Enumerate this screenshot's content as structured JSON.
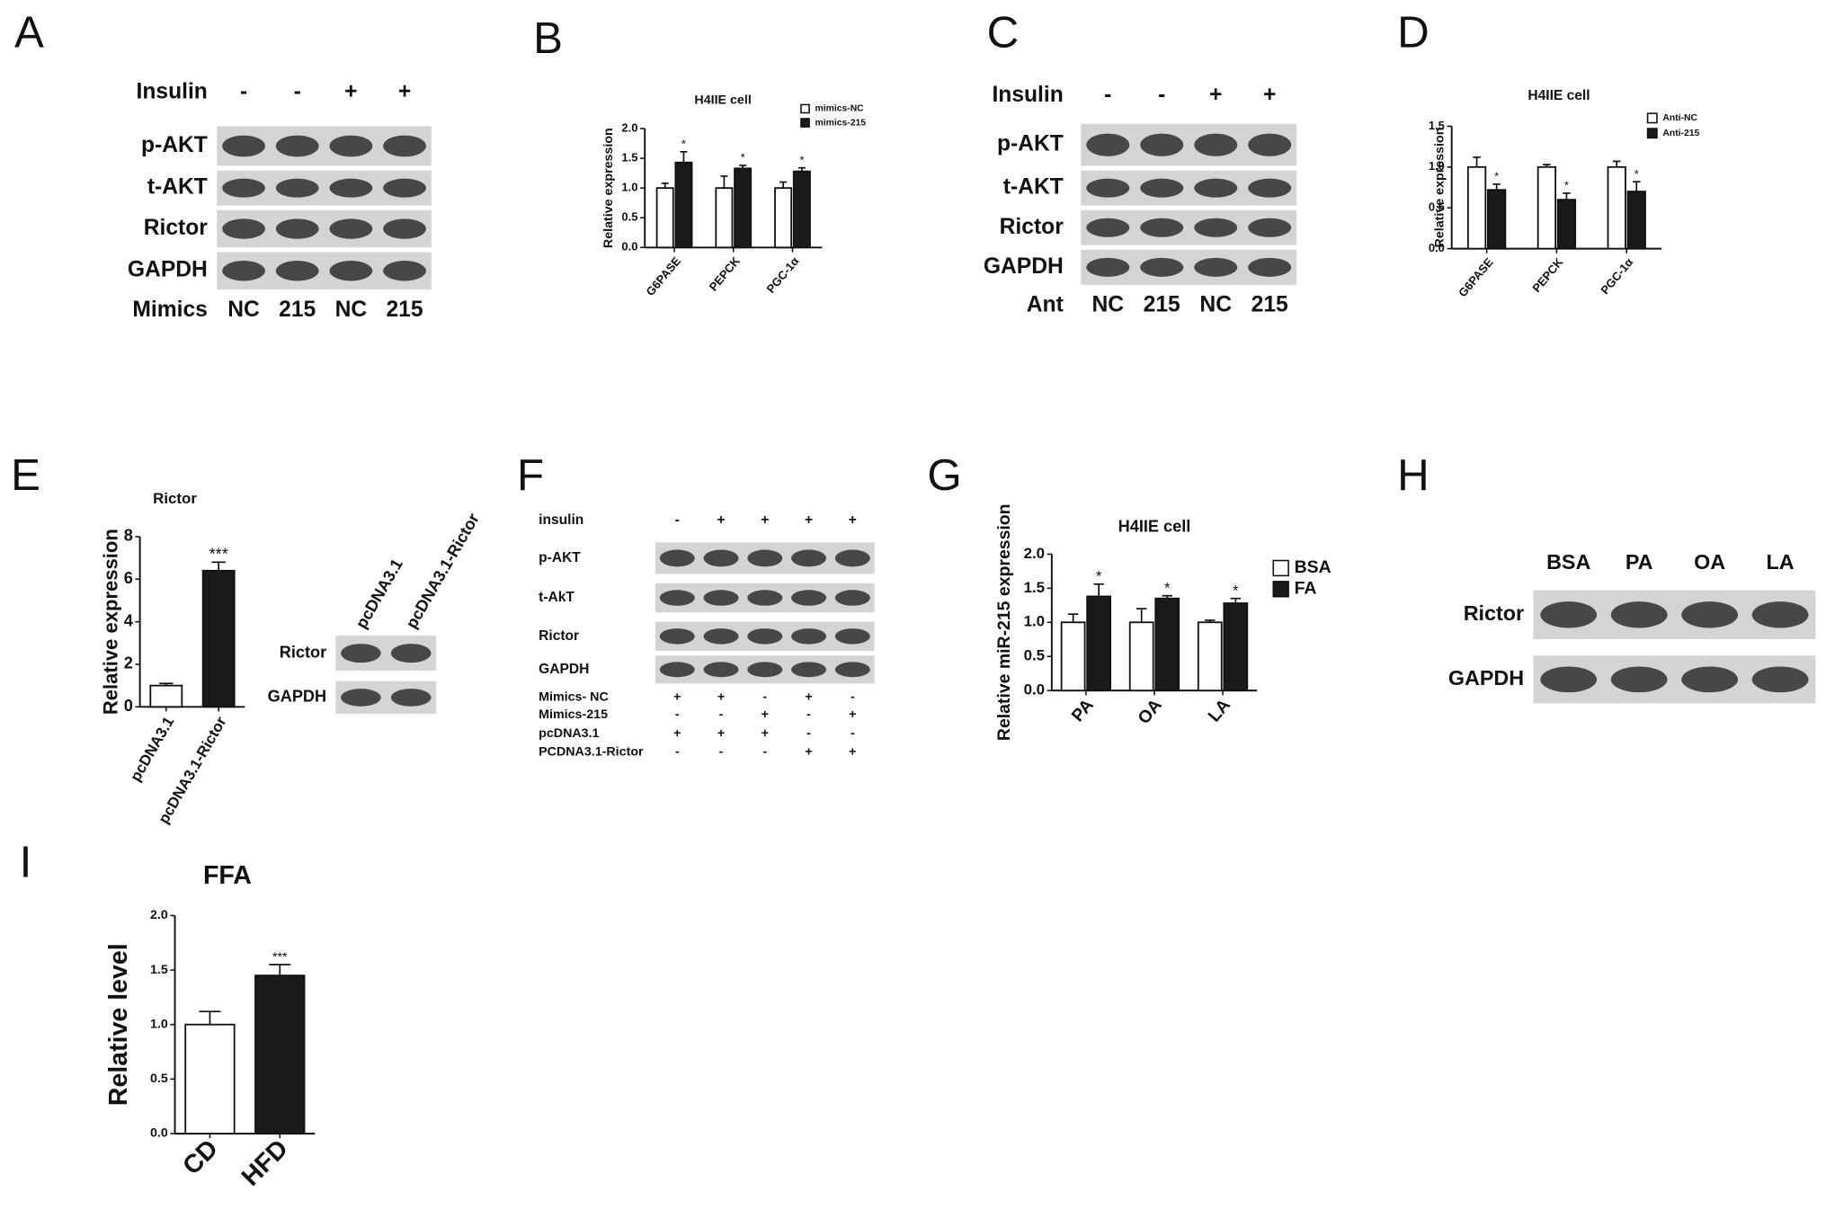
{
  "chart_data": [
    {
      "type": "bar",
      "panel": "B",
      "title": "H4IIE cell",
      "y_label": "Relative expression",
      "categories": [
        "G6PASE",
        "PEPCK",
        "PGC-1α"
      ],
      "series": [
        {
          "name": "mimics-NC",
          "color": "#ffffff",
          "values": [
            1.0,
            1.0,
            1.0
          ],
          "errors": [
            0.08,
            0.2,
            0.1
          ]
        },
        {
          "name": "mimics-215",
          "color": "#1a1a1a",
          "values": [
            1.43,
            1.33,
            1.28
          ],
          "errors": [
            0.18,
            0.05,
            0.06
          ],
          "significance": [
            "*",
            "*",
            "*"
          ]
        }
      ],
      "ylim": [
        0,
        2
      ],
      "yticks": [
        {
          "value": 0,
          "label": "0.0"
        },
        {
          "value": 0.5,
          "label": "0.5"
        },
        {
          "value": 1,
          "label": "1.0"
        },
        {
          "value": 1.5,
          "label": "1.5"
        },
        {
          "value": 2,
          "label": "2.0"
        }
      ]
    },
    {
      "type": "bar",
      "panel": "D",
      "title": "H4IIE cell",
      "y_label": "Relative expression",
      "categories": [
        "G6PASE",
        "PEPCK",
        "PGC-1α"
      ],
      "series": [
        {
          "name": "Anti-NC",
          "color": "#ffffff",
          "values": [
            1.0,
            1.0,
            1.0
          ],
          "errors": [
            0.12,
            0.03,
            0.07
          ]
        },
        {
          "name": "Anti-215",
          "color": "#1a1a1a",
          "values": [
            0.72,
            0.6,
            0.7
          ],
          "errors": [
            0.07,
            0.08,
            0.12
          ],
          "significance": [
            "*",
            "*",
            "*"
          ]
        }
      ],
      "ylim": [
        0,
        1.5
      ],
      "yticks": [
        {
          "value": 0,
          "label": "0.0"
        },
        {
          "value": 0.5,
          "label": "0.5"
        },
        {
          "value": 1,
          "label": "1.0"
        },
        {
          "value": 1.5,
          "label": "1.5"
        }
      ]
    },
    {
      "type": "bar",
      "panel": "E",
      "title": "Rictor",
      "y_label": "Relative expression",
      "categories": [
        "pcDNA3.1",
        "pcDNA3.1-Rictor"
      ],
      "series": [
        {
          "colors": [
            "#ffffff",
            "#1a1a1a"
          ],
          "values": [
            1.0,
            6.4
          ],
          "errors": [
            0.1,
            0.4
          ],
          "significance": [
            null,
            "***"
          ]
        }
      ],
      "ylim": [
        0,
        8
      ],
      "yticks": [
        0,
        2,
        4,
        6,
        8
      ]
    },
    {
      "type": "bar",
      "panel": "G",
      "title": "H4IIE cell",
      "y_label": "Relative miR-215 expression",
      "categories": [
        "PA",
        "OA",
        "LA"
      ],
      "series": [
        {
          "name": "BSA",
          "color": "#ffffff",
          "values": [
            1.0,
            1.0,
            1.0
          ],
          "errors": [
            0.12,
            0.2,
            0.03
          ]
        },
        {
          "name": "FA",
          "color": "#1a1a1a",
          "values": [
            1.38,
            1.35,
            1.28
          ],
          "errors": [
            0.18,
            0.04,
            0.07
          ],
          "significance": [
            "*",
            "*",
            "*"
          ]
        }
      ],
      "ylim": [
        0,
        2
      ],
      "yticks": [
        {
          "value": 0,
          "label": "0.0"
        },
        {
          "value": 0.5,
          "label": "0.5"
        },
        {
          "value": 1,
          "label": "1.0"
        },
        {
          "value": 1.5,
          "label": "1.5"
        },
        {
          "value": 2,
          "label": "2.0"
        }
      ]
    },
    {
      "type": "bar",
      "panel": "I",
      "title": "FFA",
      "y_label": "Relative level",
      "categories": [
        "CD",
        "HFD"
      ],
      "series": [
        {
          "colors": [
            "#ffffff",
            "#1a1a1a"
          ],
          "values": [
            1.0,
            1.45
          ],
          "errors": [
            0.12,
            0.1
          ],
          "significance": [
            null,
            "***"
          ]
        }
      ],
      "ylim": [
        0,
        2
      ],
      "yticks": [
        {
          "value": 0,
          "label": "0.0"
        },
        {
          "value": 0.5,
          "label": "0.5"
        },
        {
          "value": 1,
          "label": "1.0"
        },
        {
          "value": 1.5,
          "label": "1.5"
        },
        {
          "value": 2,
          "label": "2.0"
        }
      ]
    }
  ],
  "blots": [
    {
      "panel": "A",
      "header": {
        "name": "Insulin",
        "values": [
          "-",
          "-",
          "+",
          "+"
        ]
      },
      "rows": [
        "p-AKT",
        "t-AKT",
        "Rictor",
        "GAPDH"
      ],
      "footer": {
        "name": "Mimics",
        "values": [
          "NC",
          "215",
          "NC",
          "215"
        ]
      }
    },
    {
      "panel": "C",
      "header": {
        "name": "Insulin",
        "values": [
          "-",
          "-",
          "+",
          "+"
        ]
      },
      "rows": [
        "p-AKT",
        "t-AKT",
        "Rictor",
        "GAPDH"
      ],
      "footer": {
        "name": "Ant",
        "values": [
          "NC",
          "215",
          "NC",
          "215"
        ]
      }
    },
    {
      "columns": [
        "pcDNA3.1",
        "pcDNA3.1-Rictor"
      ],
      "rows": [
        "Rictor",
        "GAPDH"
      ]
    },
    {
      "panel": "F",
      "header": {
        "name": "insulin",
        "values": [
          "-",
          "+",
          "+",
          "+",
          "+"
        ]
      },
      "rows": [
        "p-AKT",
        "t-AkT",
        "Rictor",
        "GAPDH"
      ],
      "conditions": [
        {
          "name": "Mimics- NC",
          "values": [
            "+",
            "+",
            "-",
            "+",
            "-"
          ]
        },
        {
          "name": "Mimics-215",
          "values": [
            "-",
            "-",
            "+",
            "-",
            "+"
          ]
        },
        {
          "name": "pcDNA3.1",
          "values": [
            "+",
            "+",
            "+",
            "-",
            "-"
          ]
        },
        {
          "name": "PCDNA3.1-Rictor",
          "values": [
            "-",
            "-",
            "-",
            "+",
            "+"
          ]
        }
      ]
    },
    {
      "panel": "H",
      "columns": [
        "BSA",
        "PA",
        "OA",
        "LA"
      ],
      "rows": [
        "Rictor",
        "GAPDH"
      ]
    }
  ]
}
